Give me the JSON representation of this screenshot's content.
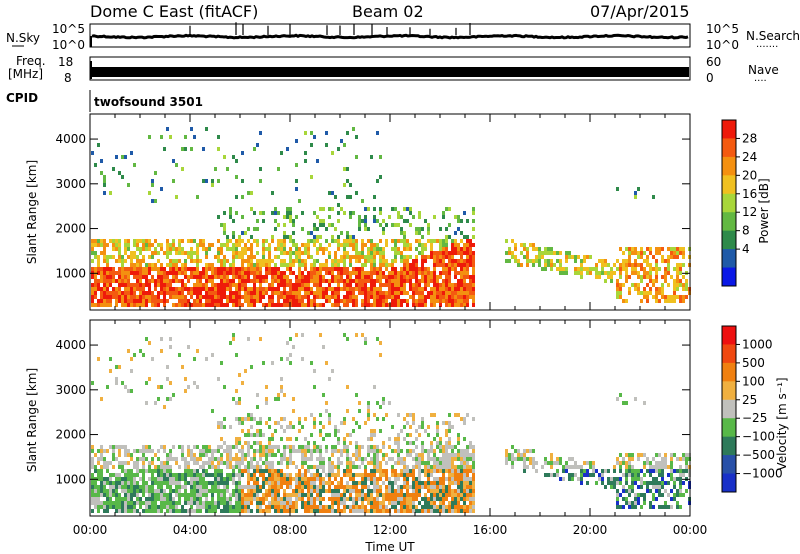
{
  "header": {
    "title": "Dome C East (fitACF)",
    "beam": "Beam 02",
    "date": "07/Apr/2015"
  },
  "top_panels": {
    "nsky": {
      "label": "N.Sky",
      "left_ticks": [
        "10^5",
        "10^0"
      ],
      "right_ticks": [
        "10^5",
        "10^0"
      ],
      "right_label": "N.Search",
      "right_dots": "·······"
    },
    "freq": {
      "label_line1": "Freq.",
      "label_line2": "[MHz]",
      "left_ticks": [
        "18",
        "8"
      ],
      "right_ticks": [
        "60",
        "0"
      ],
      "right_label": "Nave",
      "right_dots": "····"
    },
    "cpid": {
      "label": "CPID",
      "value": "twofsound 3501"
    }
  },
  "chart_data": [
    {
      "type": "heatmap",
      "name": "power",
      "ylabel": "Slant Range [km]",
      "yticks": [
        1000,
        2000,
        3000,
        4000
      ],
      "ylim": [
        180,
        4560
      ],
      "xlim": [
        0,
        24
      ],
      "colorbar": {
        "label": "Power [dB]",
        "ticks": [
          "28",
          "24",
          "20",
          "16",
          "12",
          "8",
          "4"
        ],
        "colors": [
          "#0a18e6",
          "#1f5aa8",
          "#2e8a4a",
          "#62b842",
          "#a8d63a",
          "#f0c020",
          "#f49010",
          "#f45a10",
          "#ee1a0a"
        ]
      }
    },
    {
      "type": "heatmap",
      "name": "velocity",
      "ylabel": "Slant Range [km]",
      "yticks": [
        1000,
        2000,
        3000,
        4000
      ],
      "ylim": [
        180,
        4560
      ],
      "xlim": [
        0,
        24
      ],
      "xticks": [
        "00:00",
        "04:00",
        "08:00",
        "12:00",
        "16:00",
        "20:00",
        "00:00"
      ],
      "xlabel": "Time UT",
      "colorbar": {
        "label": "Velocity [m s⁻¹]",
        "ticks": [
          "1000",
          "500",
          "100",
          "25",
          "−25",
          "−100",
          "−500",
          "−1000"
        ],
        "colors": [
          "#1830c8",
          "#2850a8",
          "#2e7a5a",
          "#58b848",
          "#c0c0bc",
          "#f0b040",
          "#f08010",
          "#f04810",
          "#ee1010"
        ]
      }
    }
  ]
}
